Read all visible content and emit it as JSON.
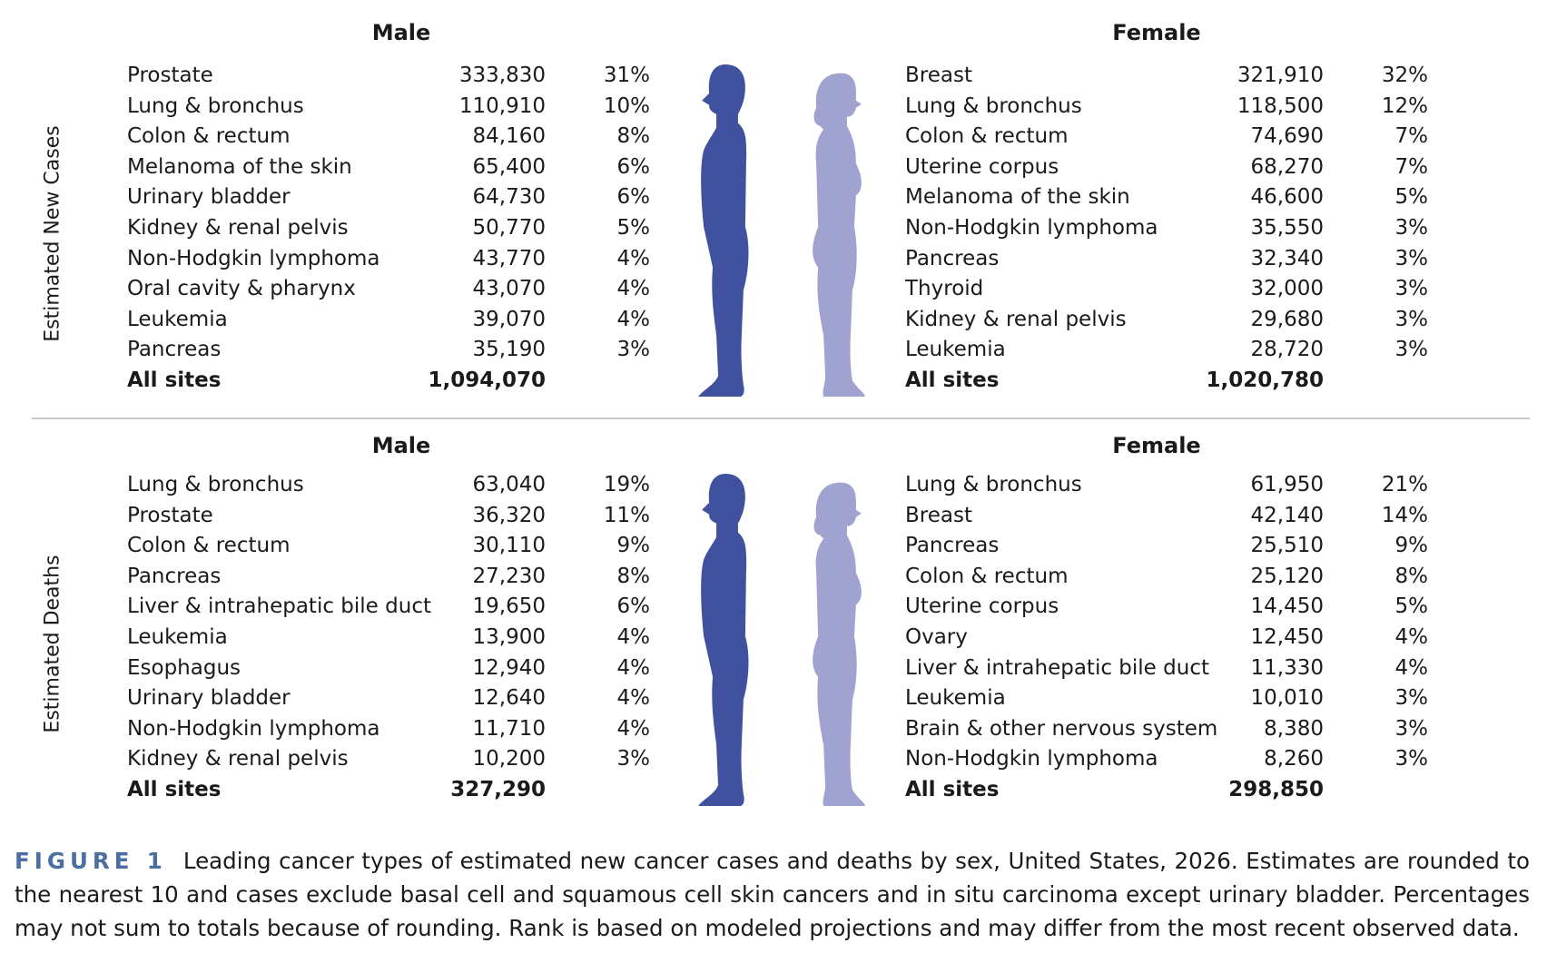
{
  "colors": {
    "male": "#3F519F",
    "female": "#A0A3CF",
    "figure_label": "#4A6FA0"
  },
  "new_cases": {
    "section_label": "Estimated New Cases",
    "male": {
      "header": "Male",
      "rows": [
        {
          "site": "Prostate",
          "count": "333,830",
          "pct": "31%"
        },
        {
          "site": "Lung & bronchus",
          "count": "110,910",
          "pct": "10%"
        },
        {
          "site": "Colon & rectum",
          "count": "84,160",
          "pct": "8%"
        },
        {
          "site": "Melanoma of the skin",
          "count": "65,400",
          "pct": "6%"
        },
        {
          "site": "Urinary bladder",
          "count": "64,730",
          "pct": "6%"
        },
        {
          "site": "Kidney & renal pelvis",
          "count": "50,770",
          "pct": "5%"
        },
        {
          "site": "Non-Hodgkin lymphoma",
          "count": "43,770",
          "pct": "4%"
        },
        {
          "site": "Oral cavity & pharynx",
          "count": "43,070",
          "pct": "4%"
        },
        {
          "site": "Leukemia",
          "count": "39,070",
          "pct": "4%"
        },
        {
          "site": "Pancreas",
          "count": "35,190",
          "pct": "3%"
        }
      ],
      "total": {
        "site": "All sites",
        "count": "1,094,070"
      }
    },
    "female": {
      "header": "Female",
      "rows": [
        {
          "site": "Breast",
          "count": "321,910",
          "pct": "32%"
        },
        {
          "site": "Lung & bronchus",
          "count": "118,500",
          "pct": "12%"
        },
        {
          "site": "Colon & rectum",
          "count": "74,690",
          "pct": "7%"
        },
        {
          "site": "Uterine corpus",
          "count": "68,270",
          "pct": "7%"
        },
        {
          "site": "Melanoma of the skin",
          "count": "46,600",
          "pct": "5%"
        },
        {
          "site": "Non-Hodgkin lymphoma",
          "count": "35,550",
          "pct": "3%"
        },
        {
          "site": "Pancreas",
          "count": "32,340",
          "pct": "3%"
        },
        {
          "site": "Thyroid",
          "count": "32,000",
          "pct": "3%"
        },
        {
          "site": "Kidney & renal pelvis",
          "count": "29,680",
          "pct": "3%"
        },
        {
          "site": "Leukemia",
          "count": "28,720",
          "pct": "3%"
        }
      ],
      "total": {
        "site": "All sites",
        "count": "1,020,780"
      }
    }
  },
  "deaths": {
    "section_label": "Estimated Deaths",
    "male": {
      "header": "Male",
      "rows": [
        {
          "site": "Lung & bronchus",
          "count": "63,040",
          "pct": "19%"
        },
        {
          "site": "Prostate",
          "count": "36,320",
          "pct": "11%"
        },
        {
          "site": "Colon & rectum",
          "count": "30,110",
          "pct": "9%"
        },
        {
          "site": "Pancreas",
          "count": "27,230",
          "pct": "8%"
        },
        {
          "site": "Liver & intrahepatic bile duct",
          "count": "19,650",
          "pct": "6%"
        },
        {
          "site": "Leukemia",
          "count": "13,900",
          "pct": "4%"
        },
        {
          "site": "Esophagus",
          "count": "12,940",
          "pct": "4%"
        },
        {
          "site": "Urinary bladder",
          "count": "12,640",
          "pct": "4%"
        },
        {
          "site": "Non-Hodgkin lymphoma",
          "count": "11,710",
          "pct": "4%"
        },
        {
          "site": "Kidney & renal pelvis",
          "count": "10,200",
          "pct": "3%"
        }
      ],
      "total": {
        "site": "All sites",
        "count": "327,290"
      }
    },
    "female": {
      "header": "Female",
      "rows": [
        {
          "site": "Lung & bronchus",
          "count": "61,950",
          "pct": "21%"
        },
        {
          "site": "Breast",
          "count": "42,140",
          "pct": "14%"
        },
        {
          "site": "Pancreas",
          "count": "25,510",
          "pct": "9%"
        },
        {
          "site": "Colon & rectum",
          "count": "25,120",
          "pct": "8%"
        },
        {
          "site": "Uterine corpus",
          "count": "14,450",
          "pct": "5%"
        },
        {
          "site": "Ovary",
          "count": "12,450",
          "pct": "4%"
        },
        {
          "site": "Liver & intrahepatic bile duct",
          "count": "11,330",
          "pct": "4%"
        },
        {
          "site": "Leukemia",
          "count": "10,010",
          "pct": "3%"
        },
        {
          "site": "Brain & other nervous system",
          "count": "8,380",
          "pct": "3%"
        },
        {
          "site": "Non-Hodgkin lymphoma",
          "count": "8,260",
          "pct": "3%"
        }
      ],
      "total": {
        "site": "All sites",
        "count": "298,850"
      }
    }
  },
  "caption": {
    "label": "FIGURE 1",
    "text": "Leading cancer types of estimated new cancer cases and deaths by sex, United States, 2026. Estimates are rounded to the nearest 10 and cases exclude basal cell and squamous cell skin cancers and in situ carcinoma except urinary bladder. Percentages may not sum to totals because of rounding. Rank is based on modeled projections and may differ from the most recent observed data."
  }
}
